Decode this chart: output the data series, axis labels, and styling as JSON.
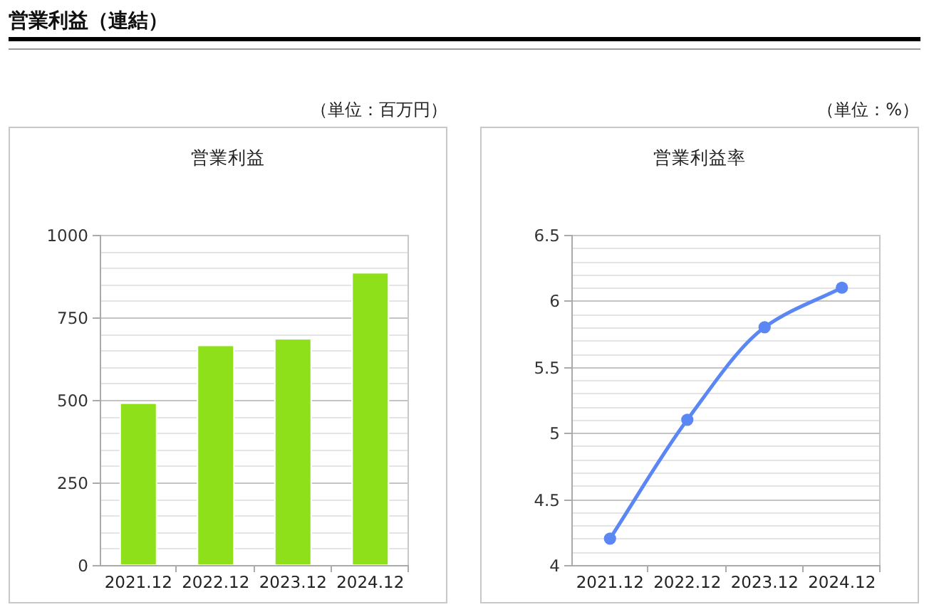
{
  "chart_data": [
    {
      "type": "other",
      "title": "営業利益（連結）"
    },
    {
      "type": "bar",
      "title": "営業利益",
      "ylabel": "（単位：百万円）",
      "categories": [
        "2021.12",
        "2022.12",
        "2023.12",
        "2024.12"
      ],
      "values": [
        490,
        665,
        685,
        885
      ],
      "color": "#8ee01a",
      "ylim": [
        0,
        1000
      ],
      "yticks": [
        0,
        {
          "value": 50,
          "label": null
        },
        {
          "value": 100,
          "label": null
        },
        {
          "value": 150,
          "label": null
        },
        {
          "value": 200,
          "label": null
        },
        250,
        {
          "value": 300,
          "label": null
        },
        {
          "value": 350,
          "label": null
        },
        {
          "value": 400,
          "label": null
        },
        {
          "value": 450,
          "label": null
        },
        500,
        {
          "value": 550,
          "label": null
        },
        {
          "value": 600,
          "label": null
        },
        {
          "value": 650,
          "label": null
        },
        {
          "value": 700,
          "label": null
        },
        750,
        {
          "value": 800,
          "label": null
        },
        {
          "value": 850,
          "label": null
        },
        {
          "value": 900,
          "label": null
        },
        {
          "value": 950,
          "label": null
        },
        1000
      ],
      "grid": "y"
    },
    {
      "type": "line",
      "title": "営業利益率",
      "ylabel": "（単位：%）",
      "categories": [
        "2021.12",
        "2022.12",
        "2023.12",
        "2024.12"
      ],
      "series": [
        {
          "color": "#5b87f5",
          "values": [
            4.2,
            5.1,
            5.8,
            6.1
          ]
        }
      ],
      "marker": "circle",
      "ylim": [
        4,
        6.5
      ],
      "yticks": [
        4,
        {
          "value": 4.1,
          "label": null
        },
        {
          "value": 4.2,
          "label": null
        },
        {
          "value": 4.3,
          "label": null
        },
        {
          "value": 4.4,
          "label": null
        },
        4.5,
        {
          "value": 4.6,
          "label": null
        },
        {
          "value": 4.7,
          "label": null
        },
        {
          "value": 4.8,
          "label": null
        },
        {
          "value": 4.9,
          "label": null
        },
        5,
        {
          "value": 5.1,
          "label": null
        },
        {
          "value": 5.2,
          "label": null
        },
        {
          "value": 5.3,
          "label": null
        },
        {
          "value": 5.4,
          "label": null
        },
        5.5,
        {
          "value": 5.6,
          "label": null
        },
        {
          "value": 5.7,
          "label": null
        },
        {
          "value": 5.8,
          "label": null
        },
        {
          "value": 5.9,
          "label": null
        },
        6,
        {
          "value": 6.1,
          "label": null
        },
        {
          "value": 6.2,
          "label": null
        },
        {
          "value": 6.3,
          "label": null
        },
        {
          "value": 6.4,
          "label": null
        },
        6.5
      ],
      "grid": "y"
    }
  ]
}
